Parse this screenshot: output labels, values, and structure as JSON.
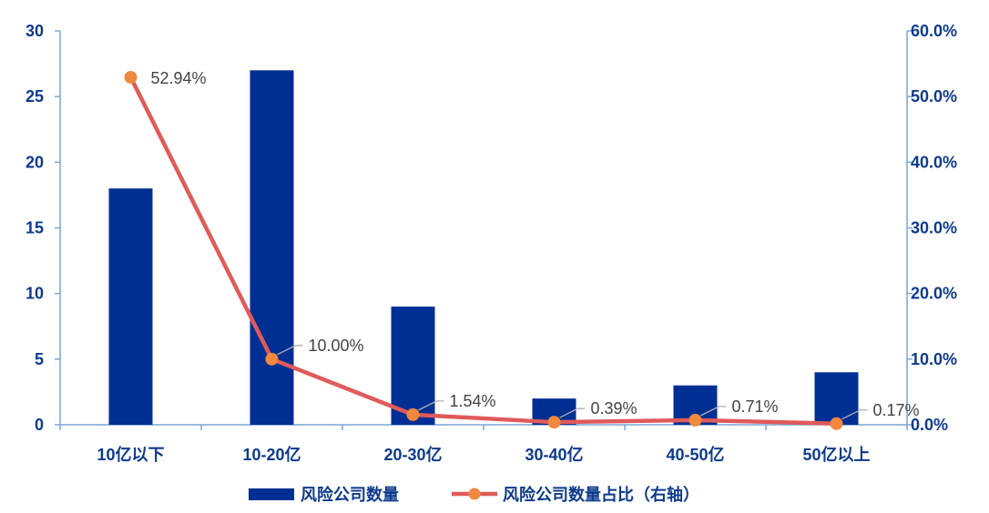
{
  "chart_data": {
    "type": "bar",
    "categories": [
      "10亿以下",
      "10-20亿",
      "20-30亿",
      "30-40亿",
      "40-50亿",
      "50亿以上"
    ],
    "series": [
      {
        "name": "风险公司数量",
        "type": "bar",
        "axis": "left",
        "values": [
          18,
          27,
          9,
          2,
          3,
          4
        ],
        "color": "#002f94"
      },
      {
        "name": "风险公司数量占比（右轴）",
        "type": "line",
        "axis": "right",
        "values": [
          52.94,
          10.0,
          1.54,
          0.39,
          0.71,
          0.17
        ],
        "color": "#e05a5a",
        "marker_color": "#f0883e"
      }
    ],
    "data_labels": [
      "52.94%",
      "10.00%",
      "1.54%",
      "0.39%",
      "0.71%",
      "0.17%"
    ],
    "ylim_left": [
      0,
      30
    ],
    "ylim_right": [
      0,
      60
    ],
    "yticks_left": [
      "0",
      "5",
      "10",
      "15",
      "20",
      "25",
      "30"
    ],
    "yticks_right": [
      "0.0%",
      "10.0%",
      "20.0%",
      "30.0%",
      "40.0%",
      "50.0%",
      "60.0%"
    ],
    "legend_position": "bottom",
    "grid": false
  }
}
